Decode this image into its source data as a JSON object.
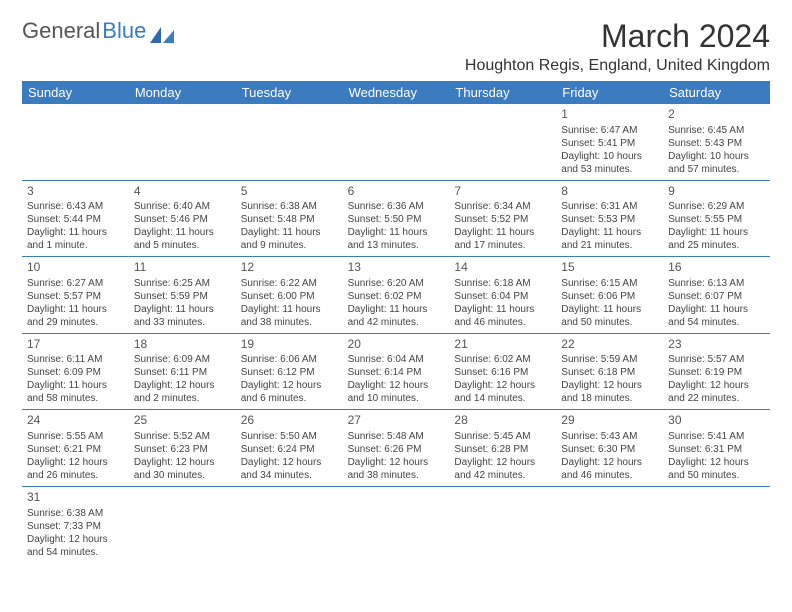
{
  "logo": {
    "text1": "General",
    "text2": "Blue"
  },
  "title": "March 2024",
  "location": "Houghton Regis, England, United Kingdom",
  "colors": {
    "header_bg": "#3b7bbf",
    "header_text": "#ffffff",
    "row_border": "#3b7bbf",
    "body_text": "#444444",
    "title_text": "#333333"
  },
  "weekdays": [
    "Sunday",
    "Monday",
    "Tuesday",
    "Wednesday",
    "Thursday",
    "Friday",
    "Saturday"
  ],
  "weeks": [
    [
      null,
      null,
      null,
      null,
      null,
      {
        "n": "1",
        "sunrise": "6:47 AM",
        "sunset": "5:41 PM",
        "dl1": "10 hours",
        "dl2": "and 53 minutes."
      },
      {
        "n": "2",
        "sunrise": "6:45 AM",
        "sunset": "5:43 PM",
        "dl1": "10 hours",
        "dl2": "and 57 minutes."
      }
    ],
    [
      {
        "n": "3",
        "sunrise": "6:43 AM",
        "sunset": "5:44 PM",
        "dl1": "11 hours",
        "dl2": "and 1 minute."
      },
      {
        "n": "4",
        "sunrise": "6:40 AM",
        "sunset": "5:46 PM",
        "dl1": "11 hours",
        "dl2": "and 5 minutes."
      },
      {
        "n": "5",
        "sunrise": "6:38 AM",
        "sunset": "5:48 PM",
        "dl1": "11 hours",
        "dl2": "and 9 minutes."
      },
      {
        "n": "6",
        "sunrise": "6:36 AM",
        "sunset": "5:50 PM",
        "dl1": "11 hours",
        "dl2": "and 13 minutes."
      },
      {
        "n": "7",
        "sunrise": "6:34 AM",
        "sunset": "5:52 PM",
        "dl1": "11 hours",
        "dl2": "and 17 minutes."
      },
      {
        "n": "8",
        "sunrise": "6:31 AM",
        "sunset": "5:53 PM",
        "dl1": "11 hours",
        "dl2": "and 21 minutes."
      },
      {
        "n": "9",
        "sunrise": "6:29 AM",
        "sunset": "5:55 PM",
        "dl1": "11 hours",
        "dl2": "and 25 minutes."
      }
    ],
    [
      {
        "n": "10",
        "sunrise": "6:27 AM",
        "sunset": "5:57 PM",
        "dl1": "11 hours",
        "dl2": "and 29 minutes."
      },
      {
        "n": "11",
        "sunrise": "6:25 AM",
        "sunset": "5:59 PM",
        "dl1": "11 hours",
        "dl2": "and 33 minutes."
      },
      {
        "n": "12",
        "sunrise": "6:22 AM",
        "sunset": "6:00 PM",
        "dl1": "11 hours",
        "dl2": "and 38 minutes."
      },
      {
        "n": "13",
        "sunrise": "6:20 AM",
        "sunset": "6:02 PM",
        "dl1": "11 hours",
        "dl2": "and 42 minutes."
      },
      {
        "n": "14",
        "sunrise": "6:18 AM",
        "sunset": "6:04 PM",
        "dl1": "11 hours",
        "dl2": "and 46 minutes."
      },
      {
        "n": "15",
        "sunrise": "6:15 AM",
        "sunset": "6:06 PM",
        "dl1": "11 hours",
        "dl2": "and 50 minutes."
      },
      {
        "n": "16",
        "sunrise": "6:13 AM",
        "sunset": "6:07 PM",
        "dl1": "11 hours",
        "dl2": "and 54 minutes."
      }
    ],
    [
      {
        "n": "17",
        "sunrise": "6:11 AM",
        "sunset": "6:09 PM",
        "dl1": "11 hours",
        "dl2": "and 58 minutes."
      },
      {
        "n": "18",
        "sunrise": "6:09 AM",
        "sunset": "6:11 PM",
        "dl1": "12 hours",
        "dl2": "and 2 minutes."
      },
      {
        "n": "19",
        "sunrise": "6:06 AM",
        "sunset": "6:12 PM",
        "dl1": "12 hours",
        "dl2": "and 6 minutes."
      },
      {
        "n": "20",
        "sunrise": "6:04 AM",
        "sunset": "6:14 PM",
        "dl1": "12 hours",
        "dl2": "and 10 minutes."
      },
      {
        "n": "21",
        "sunrise": "6:02 AM",
        "sunset": "6:16 PM",
        "dl1": "12 hours",
        "dl2": "and 14 minutes."
      },
      {
        "n": "22",
        "sunrise": "5:59 AM",
        "sunset": "6:18 PM",
        "dl1": "12 hours",
        "dl2": "and 18 minutes."
      },
      {
        "n": "23",
        "sunrise": "5:57 AM",
        "sunset": "6:19 PM",
        "dl1": "12 hours",
        "dl2": "and 22 minutes."
      }
    ],
    [
      {
        "n": "24",
        "sunrise": "5:55 AM",
        "sunset": "6:21 PM",
        "dl1": "12 hours",
        "dl2": "and 26 minutes."
      },
      {
        "n": "25",
        "sunrise": "5:52 AM",
        "sunset": "6:23 PM",
        "dl1": "12 hours",
        "dl2": "and 30 minutes."
      },
      {
        "n": "26",
        "sunrise": "5:50 AM",
        "sunset": "6:24 PM",
        "dl1": "12 hours",
        "dl2": "and 34 minutes."
      },
      {
        "n": "27",
        "sunrise": "5:48 AM",
        "sunset": "6:26 PM",
        "dl1": "12 hours",
        "dl2": "and 38 minutes."
      },
      {
        "n": "28",
        "sunrise": "5:45 AM",
        "sunset": "6:28 PM",
        "dl1": "12 hours",
        "dl2": "and 42 minutes."
      },
      {
        "n": "29",
        "sunrise": "5:43 AM",
        "sunset": "6:30 PM",
        "dl1": "12 hours",
        "dl2": "and 46 minutes."
      },
      {
        "n": "30",
        "sunrise": "5:41 AM",
        "sunset": "6:31 PM",
        "dl1": "12 hours",
        "dl2": "and 50 minutes."
      }
    ],
    [
      {
        "n": "31",
        "sunrise": "6:38 AM",
        "sunset": "7:33 PM",
        "dl1": "12 hours",
        "dl2": "and 54 minutes."
      },
      null,
      null,
      null,
      null,
      null,
      null
    ]
  ],
  "labels": {
    "sunrise": "Sunrise:",
    "sunset": "Sunset:",
    "daylight": "Daylight:"
  }
}
